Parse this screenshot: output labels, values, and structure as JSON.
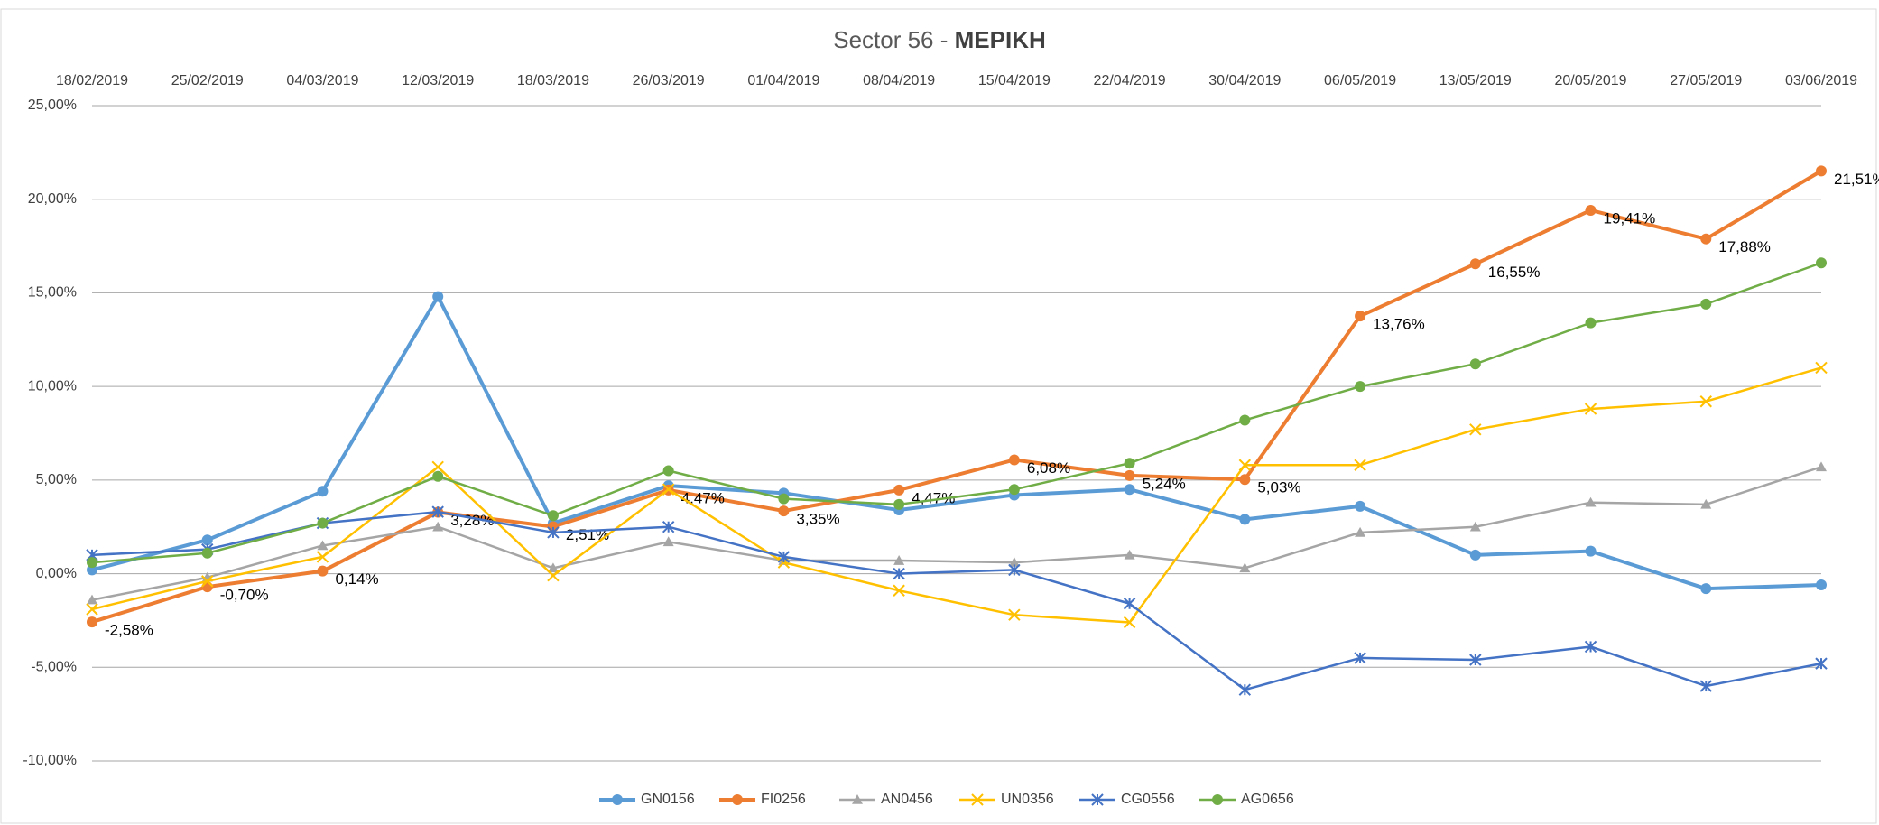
{
  "chart_data": {
    "type": "line",
    "title": [
      "Sector 56 - ",
      "ΜΕΡΙΚΗ"
    ],
    "categories": [
      "18/02/2019",
      "25/02/2019",
      "04/03/2019",
      "12/03/2019",
      "18/03/2019",
      "26/03/2019",
      "01/04/2019",
      "08/04/2019",
      "15/04/2019",
      "22/04/2019",
      "30/04/2019",
      "06/05/2019",
      "13/05/2019",
      "20/05/2019",
      "27/05/2019",
      "03/06/2019"
    ],
    "ylim": [
      -10,
      25
    ],
    "yticks": [
      {
        "value": -10,
        "label": "-10,00%"
      },
      {
        "value": -5,
        "label": "-5,00%"
      },
      {
        "value": 0,
        "label": "0,00%"
      },
      {
        "value": 5,
        "label": "5,00%"
      },
      {
        "value": 10,
        "label": "10,00%"
      },
      {
        "value": 15,
        "label": "15,00%"
      },
      {
        "value": 20,
        "label": "20,00%"
      },
      {
        "value": 25,
        "label": "25,00%"
      }
    ],
    "grid": true,
    "legend": "bottom",
    "series": [
      {
        "name": "GN0156",
        "color": "#5b9bd5",
        "marker": "circle",
        "values": [
          0.2,
          1.8,
          4.4,
          14.8,
          2.7,
          4.7,
          4.3,
          3.4,
          4.2,
          4.5,
          2.9,
          3.6,
          1.0,
          1.2,
          -0.8,
          -0.6
        ]
      },
      {
        "name": "FI0256",
        "color": "#ed7d31",
        "marker": "circle",
        "values": [
          -2.58,
          -0.7,
          0.14,
          3.28,
          2.51,
          4.47,
          3.35,
          4.47,
          6.08,
          5.24,
          5.03,
          13.76,
          16.55,
          19.41,
          17.88,
          21.51
        ],
        "value_labels": [
          "-2,58%",
          "-0,70%",
          "0,14%",
          "3,28%",
          "2,51%",
          "4,47%",
          "3,35%",
          "4,47%",
          "6,08%",
          "5,24%",
          "5,03%",
          "13,76%",
          "16,55%",
          "19,41%",
          "17,88%",
          "21,51%"
        ]
      },
      {
        "name": "AN0456",
        "color": "#a5a5a5",
        "marker": "triangle",
        "values": [
          -1.4,
          -0.2,
          1.5,
          2.5,
          0.3,
          1.7,
          0.7,
          0.7,
          0.6,
          1.0,
          0.3,
          2.2,
          2.5,
          3.8,
          3.7,
          5.7
        ]
      },
      {
        "name": "UN0356",
        "color": "#ffc000",
        "marker": "x",
        "values": [
          -1.9,
          -0.4,
          0.9,
          5.7,
          -0.1,
          4.5,
          0.6,
          -0.9,
          -2.2,
          -2.6,
          5.8,
          5.8,
          7.7,
          8.8,
          9.2,
          11.0
        ]
      },
      {
        "name": "CG0556",
        "color": "#4472c4",
        "marker": "star",
        "values": [
          1.0,
          1.3,
          2.7,
          3.3,
          2.2,
          2.5,
          0.9,
          0.0,
          0.2,
          -1.6,
          -6.2,
          -4.5,
          -4.6,
          -3.9,
          -6.0,
          -4.8
        ]
      },
      {
        "name": "AG0656",
        "color": "#70ad47",
        "marker": "circle",
        "values": [
          0.6,
          1.1,
          2.7,
          5.2,
          3.1,
          5.5,
          4.0,
          3.7,
          4.5,
          5.9,
          8.2,
          10.0,
          11.2,
          13.4,
          14.4,
          16.6
        ]
      }
    ]
  }
}
